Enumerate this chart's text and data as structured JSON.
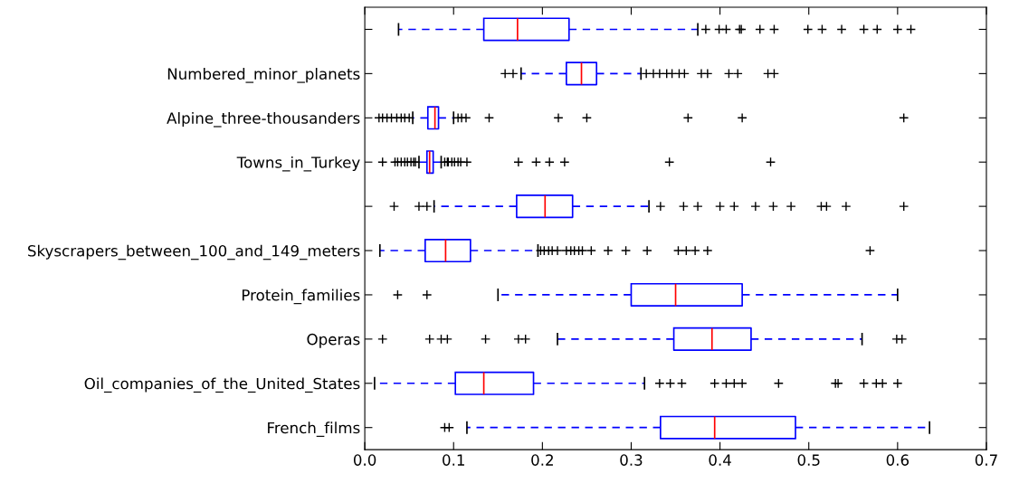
{
  "chart_data": {
    "type": "box",
    "orientation": "horizontal",
    "categories": [
      null,
      "Numbered_minor_planets",
      "Alpine_three-thousanders",
      "Towns_in_Turkey",
      null,
      "Skyscrapers_between_100_and_149_meters",
      "Protein_families",
      "Operas",
      "Oil_companies_of_the_United_States",
      "French_films"
    ],
    "boxes": [
      {
        "low": 0.038,
        "q1": 0.134,
        "median": 0.172,
        "q3": 0.23,
        "high": 0.375,
        "outliers": [
          0.384,
          0.399,
          0.407,
          0.422,
          0.424,
          0.445,
          0.461,
          0.499,
          0.515,
          0.537,
          0.562,
          0.577,
          0.6,
          0.615
        ]
      },
      {
        "low": 0.176,
        "q1": 0.227,
        "median": 0.244,
        "q3": 0.261,
        "high": 0.311,
        "outliers": [
          0.158,
          0.167,
          0.317,
          0.325,
          0.332,
          0.34,
          0.346,
          0.354,
          0.36,
          0.379,
          0.386,
          0.41,
          0.42,
          0.454,
          0.461
        ]
      },
      {
        "low": 0.054,
        "q1": 0.071,
        "median": 0.079,
        "q3": 0.083,
        "high": 0.1,
        "outliers": [
          0.016,
          0.02,
          0.025,
          0.03,
          0.036,
          0.041,
          0.045,
          0.05,
          0.105,
          0.109,
          0.114,
          0.14,
          0.218,
          0.25,
          0.364,
          0.425,
          0.607
        ]
      },
      {
        "low": 0.061,
        "q1": 0.07,
        "median": 0.073,
        "q3": 0.077,
        "high": 0.086,
        "outliers": [
          0.02,
          0.034,
          0.037,
          0.041,
          0.045,
          0.048,
          0.052,
          0.055,
          0.057,
          0.09,
          0.093,
          0.094,
          0.098,
          0.101,
          0.105,
          0.108,
          0.115,
          0.173,
          0.193,
          0.208,
          0.225,
          0.343,
          0.457
        ]
      },
      {
        "low": 0.078,
        "q1": 0.171,
        "median": 0.203,
        "q3": 0.234,
        "high": 0.32,
        "outliers": [
          0.033,
          0.061,
          0.07,
          0.333,
          0.359,
          0.375,
          0.4,
          0.416,
          0.44,
          0.46,
          0.48,
          0.514,
          0.52,
          0.542,
          0.607
        ]
      },
      {
        "low": 0.017,
        "q1": 0.068,
        "median": 0.091,
        "q3": 0.119,
        "high": 0.195,
        "outliers": [
          0.198,
          0.202,
          0.207,
          0.211,
          0.217,
          0.227,
          0.232,
          0.236,
          0.241,
          0.245,
          0.255,
          0.274,
          0.294,
          0.318,
          0.353,
          0.362,
          0.372,
          0.386,
          0.569
        ]
      },
      {
        "low": 0.15,
        "q1": 0.3,
        "median": 0.35,
        "q3": 0.425,
        "high": 0.6,
        "outliers": [
          0.037,
          0.07
        ]
      },
      {
        "low": 0.217,
        "q1": 0.348,
        "median": 0.391,
        "q3": 0.435,
        "high": 0.56,
        "outliers": [
          0.02,
          0.073,
          0.086,
          0.093,
          0.136,
          0.173,
          0.181,
          0.599,
          0.605
        ]
      },
      {
        "low": 0.011,
        "q1": 0.102,
        "median": 0.134,
        "q3": 0.19,
        "high": 0.315,
        "outliers": [
          0.332,
          0.344,
          0.357,
          0.394,
          0.407,
          0.416,
          0.425,
          0.466,
          0.53,
          0.533,
          0.562,
          0.576,
          0.583,
          0.6
        ]
      },
      {
        "low": 0.115,
        "q1": 0.333,
        "median": 0.394,
        "q3": 0.485,
        "high": 0.636,
        "outliers": [
          0.09,
          0.095
        ]
      }
    ],
    "xlim": [
      0.0,
      0.7
    ],
    "xticks": [
      {
        "value": 0.0,
        "label": "0.0"
      },
      0.1,
      0.2,
      0.3,
      0.4,
      0.5,
      0.6,
      0.7
    ],
    "grid": false
  }
}
